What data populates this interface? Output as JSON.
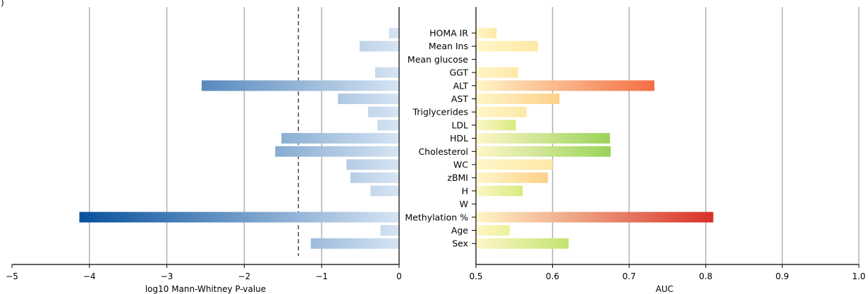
{
  "panel_letter": ")",
  "chart_data": [
    {
      "type": "bar",
      "orientation": "horizontal",
      "xlabel": "log10 Mann-Whitney P-value",
      "xlim": [
        -5,
        0
      ],
      "xticks": [
        -5,
        -4,
        -3,
        -2,
        -1,
        0
      ],
      "xtick_labels": [
        "−5",
        "−4",
        "−3",
        "−2",
        "−1",
        "0"
      ],
      "grid": "vertical",
      "reference_line": {
        "x": -1.3,
        "style": "dashed"
      },
      "color_scale": {
        "low": "#d6e4f3",
        "high": "#08519c"
      },
      "categories": [
        "HOMA IR",
        "Mean Ins",
        "Mean glucose",
        "GGT",
        "ALT",
        "AST",
        "Triglycerides",
        "LDL",
        "HDL",
        "Cholesterol",
        "WC",
        "zBMI",
        "H",
        "W",
        "Methylation %",
        "Age",
        "Sex"
      ],
      "values": [
        -0.13,
        -0.51,
        0,
        -0.31,
        -2.55,
        -0.79,
        -0.4,
        -0.28,
        -1.52,
        -1.6,
        -0.68,
        -0.63,
        -0.37,
        0,
        -4.13,
        -0.24,
        -1.14
      ]
    },
    {
      "type": "bar",
      "orientation": "horizontal",
      "xlabel": "AUC",
      "xlim": [
        0.5,
        1.0
      ],
      "xticks": [
        0.5,
        0.6,
        0.7,
        0.8,
        0.9,
        1.0
      ],
      "xtick_labels": [
        "0.5",
        "0.6",
        "0.7",
        "0.8",
        "0.9",
        "1.0"
      ],
      "grid": "vertical",
      "color_scale": {
        "low": "#fff5c4",
        "mid": "#fdae61",
        "high": "#d73027",
        "alt": "#9ad35a"
      },
      "categories": [
        "HOMA IR",
        "Mean Ins",
        "Mean glucose",
        "GGT",
        "ALT",
        "AST",
        "Triglycerides",
        "LDL",
        "HDL",
        "Cholesterol",
        "WC",
        "zBMI",
        "H",
        "W",
        "Methylation %",
        "Age",
        "Sex"
      ],
      "values": [
        0.527,
        0.581,
        0.5,
        0.555,
        0.733,
        0.609,
        0.566,
        0.552,
        0.675,
        0.676,
        0.6,
        0.594,
        0.561,
        0.5,
        0.81,
        0.544,
        0.621
      ],
      "bar_color_end": [
        "#fde9a6",
        "#fde9a6",
        "#fde9a6",
        "#fde9a6",
        "#f46d43",
        "#fdd189",
        "#fde9a6",
        "#d6ec7e",
        "#9ad35a",
        "#9ad35a",
        "#fde9a6",
        "#fdd189",
        "#d6ec7e",
        "#fde9a6",
        "#d73027",
        "#ecf29a",
        "#c3e471"
      ]
    }
  ]
}
